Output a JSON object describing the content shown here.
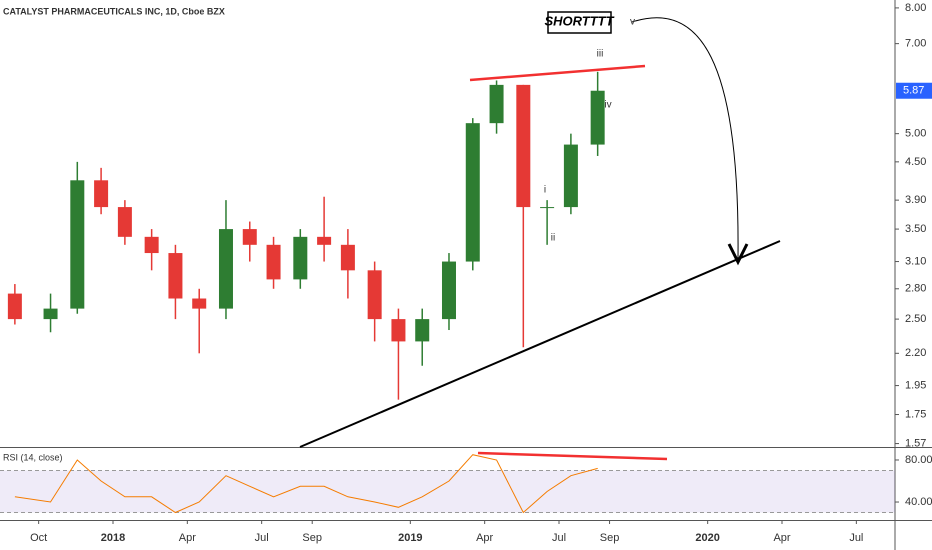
{
  "chart_data": [
    {
      "type": "candlestick",
      "title": "CATALYST PHARMACEUTICALS INC, 1D, Cboe BZX",
      "x": [
        2017.67,
        2017.79,
        2017.88,
        2017.96,
        2018.04,
        2018.13,
        2018.21,
        2018.29,
        2018.38,
        2018.46,
        2018.54,
        2018.63,
        2018.71,
        2018.79,
        2018.88,
        2018.96,
        2019.04,
        2019.13,
        2019.21,
        2019.29,
        2019.38,
        2019.46,
        2019.54,
        2019.63
      ],
      "open": [
        2.75,
        2.5,
        2.6,
        4.2,
        3.8,
        3.4,
        3.2,
        2.7,
        2.6,
        3.5,
        3.3,
        2.9,
        3.4,
        3.3,
        3.0,
        2.5,
        2.3,
        2.5,
        3.1,
        5.2,
        6.0,
        3.8,
        3.8,
        4.8
      ],
      "high": [
        2.85,
        2.75,
        4.5,
        4.4,
        3.9,
        3.5,
        3.3,
        2.8,
        3.9,
        3.6,
        3.4,
        3.5,
        3.95,
        3.5,
        3.1,
        2.6,
        2.6,
        3.2,
        5.3,
        6.1,
        6.0,
        3.9,
        5.0,
        6.3
      ],
      "low": [
        2.45,
        2.38,
        2.55,
        3.7,
        3.3,
        3.0,
        2.5,
        2.2,
        2.5,
        3.1,
        2.8,
        2.8,
        3.1,
        2.7,
        2.3,
        1.85,
        2.1,
        2.4,
        3.0,
        5.0,
        2.25,
        3.3,
        3.7,
        4.6
      ],
      "close": [
        2.5,
        2.6,
        4.2,
        3.8,
        3.4,
        3.2,
        2.7,
        2.6,
        3.5,
        3.3,
        2.9,
        3.4,
        3.3,
        3.0,
        2.5,
        2.3,
        2.5,
        3.1,
        5.2,
        6.0,
        3.8,
        3.8,
        4.8,
        5.87
      ],
      "up_color": "#2e7d32",
      "down_color": "#e53935",
      "log_scale": true,
      "xlim": [
        2017.62,
        2020.63
      ],
      "xticks": [
        {
          "value": 2017.75,
          "label": "Oct"
        },
        2018,
        {
          "value": 2018.25,
          "label": "Apr"
        },
        {
          "value": 2018.5,
          "label": "Jul"
        },
        {
          "value": 2018.67,
          "label": "Sep"
        },
        2019,
        {
          "value": 2019.25,
          "label": "Apr"
        },
        {
          "value": 2019.5,
          "label": "Jul"
        },
        {
          "value": 2019.67,
          "label": "Sep"
        },
        2020,
        {
          "value": 2020.25,
          "label": "Apr"
        },
        {
          "value": 2020.5,
          "label": "Jul"
        }
      ],
      "ylim": [
        1.55,
        8.24
      ],
      "yticks": [
        {
          "value": 1.57,
          "label": "1.57"
        },
        {
          "value": 1.75,
          "label": "1.75"
        },
        {
          "value": 1.95,
          "label": "1.95"
        },
        {
          "value": 2.2,
          "label": "2.20"
        },
        {
          "value": 2.5,
          "label": "2.50"
        },
        {
          "value": 2.8,
          "label": "2.80"
        },
        {
          "value": 3.1,
          "label": "3.10"
        },
        {
          "value": 3.5,
          "label": "3.50"
        },
        {
          "value": 3.9,
          "label": "3.90"
        },
        {
          "value": 4.5,
          "label": "4.50"
        },
        {
          "value": 5,
          "label": "5.00"
        },
        {
          "value": 7,
          "label": "7.00"
        },
        {
          "value": 8,
          "label": "8.00"
        }
      ],
      "last_price": 5.87,
      "last_price_color": "#2962ff",
      "annotations": [
        "SHORTTTT",
        "v",
        "iii",
        "iv",
        "ii",
        "i"
      ]
    },
    {
      "type": "line",
      "title": "RSI (14, close)",
      "x": [
        2017.67,
        2017.79,
        2017.88,
        2017.96,
        2018.04,
        2018.13,
        2018.21,
        2018.29,
        2018.38,
        2018.46,
        2018.54,
        2018.63,
        2018.71,
        2018.79,
        2018.88,
        2018.96,
        2019.04,
        2019.13,
        2019.21,
        2019.29,
        2019.38,
        2019.46,
        2019.54,
        2019.63
      ],
      "values": [
        45,
        40,
        80,
        60,
        45,
        45,
        30,
        40,
        65,
        55,
        45,
        55,
        55,
        45,
        40,
        35,
        45,
        60,
        85,
        80,
        30,
        50,
        65,
        72
      ],
      "color": "#f57c00",
      "band": [
        30,
        70
      ],
      "band_color": "#7e57c2",
      "xlim": [
        2017.62,
        2020.63
      ],
      "ylim": [
        22.9,
        91.4
      ],
      "yticks": [
        {
          "value": 80,
          "label": "80.00"
        },
        {
          "value": 40,
          "label": "40.00"
        }
      ]
    }
  ]
}
